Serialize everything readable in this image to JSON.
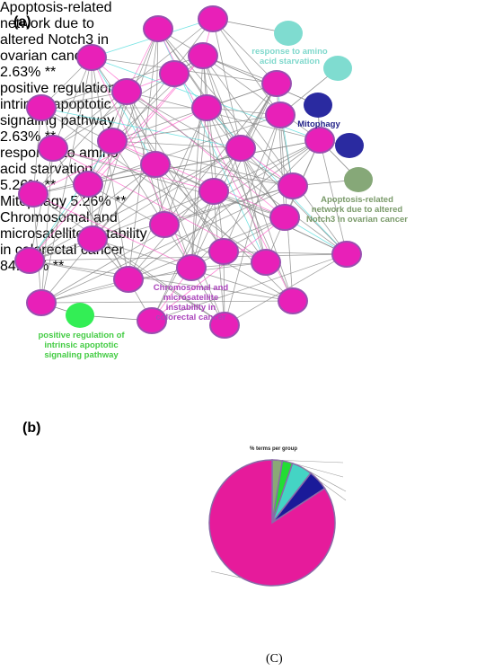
{
  "panel_labels": {
    "a": "(a)",
    "b": "(b)",
    "c": "(C)"
  },
  "network": {
    "group_labels": [
      "response to amino acid starvation",
      "Mitophagy",
      "Apoptosis-related network due to altered Notch3 in ovarian cancer",
      "Chromosomal and microsatellite instability in colorectal cancer",
      "positive regulation of intrinsic apoptotic signaling pathway"
    ]
  },
  "chart_data": {
    "type": "pie",
    "title": "% terms per group",
    "categories": [
      "Apoptosis-related network due to altered Notch3 in ovarian cancer",
      "positive regulation of intrinsic apoptotic signaling pathway",
      "response to amino acid starvation",
      "Mitophagy",
      "Chromosomal and microsatellite instability in colorectal cancer"
    ],
    "values": [
      2.63,
      2.63,
      5.26,
      5.26,
      84.21
    ],
    "value_labels": [
      "2.63% **",
      "2.63% **",
      "5.26% **",
      "5.26% **",
      "84.21% **"
    ],
    "colors": [
      "#8aa877",
      "#22dd33",
      "#44d4c4",
      "#1a1a99",
      "#e61b9b"
    ]
  }
}
